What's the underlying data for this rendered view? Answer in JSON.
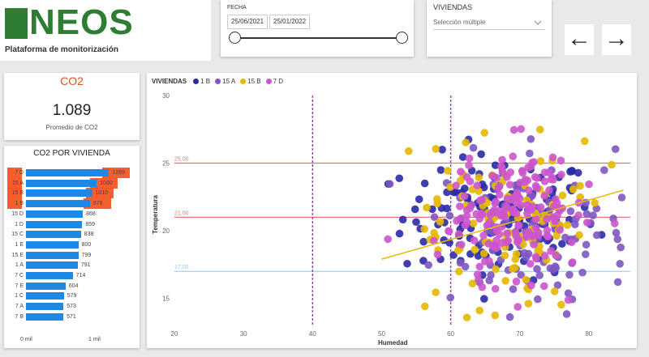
{
  "app": {
    "logo_text": "NEOS",
    "subtitle": "Plataforma de monitorización"
  },
  "date_filter": {
    "label": "FECHA",
    "start": "25/06/2021",
    "end": "25/01/2022"
  },
  "viviendas_filter": {
    "label": "VIVIENDAS",
    "value": "Selección múltiple",
    "chevron_icon": "chevron-down-icon"
  },
  "nav": {
    "back_icon": "←",
    "forward_icon": "→"
  },
  "co2_card": {
    "title": "CO2",
    "value": "1.089",
    "caption": "Promedio de CO2",
    "title_color": "#d9541e"
  },
  "bar_chart": {
    "title": "CO2 POR VIVIENDA",
    "axis_labels": [
      "0 mil",
      "1 mil"
    ],
    "bar_color": "#1e88e5",
    "highlight_color": "#f4511e"
  },
  "chart_data": {
    "type": "scatter",
    "legend_title": "VIVIENDAS",
    "xlabel": "Humedad",
    "ylabel": "Temperatura",
    "xlim": [
      20,
      86
    ],
    "ylim": [
      13,
      30
    ],
    "x_ticks": [
      "20",
      "30",
      "40",
      "50",
      "60",
      "70",
      "80"
    ],
    "y_ticks": [
      "15",
      "20",
      "25",
      "30"
    ],
    "series": [
      {
        "name": "1 B",
        "color": "#2a2aa8"
      },
      {
        "name": "15 A",
        "color": "#7e57c2"
      },
      {
        "name": "15 B",
        "color": "#e6b800"
      },
      {
        "name": "7 D",
        "color": "#cc55cc"
      }
    ],
    "reference_lines": [
      {
        "value": 25,
        "label": "25,00",
        "color": "#e57373"
      },
      {
        "value": 21,
        "label": "21,00",
        "color": "#e57373"
      },
      {
        "value": 17,
        "label": "17,00",
        "color": "#90caf9"
      }
    ],
    "vertical_lines": [
      40,
      60
    ],
    "trend_line": {
      "x": [
        50,
        85
      ],
      "y": [
        17.9,
        23.0
      ],
      "color": "#e6b800"
    },
    "bars": [
      {
        "category": "7 D",
        "value": 1269
      },
      {
        "category": "15 A",
        "value": 1080
      },
      {
        "category": "15 B",
        "value": 1010
      },
      {
        "category": "1 B",
        "value": 976
      },
      {
        "category": "15 D",
        "value": 868
      },
      {
        "category": "1 D",
        "value": 859
      },
      {
        "category": "15 C",
        "value": 838
      },
      {
        "category": "1 E",
        "value": 800
      },
      {
        "category": "15 E",
        "value": 799
      },
      {
        "category": "1 A",
        "value": 791
      },
      {
        "category": "7 C",
        "value": 714
      },
      {
        "category": "7 E",
        "value": 604
      },
      {
        "category": "1 C",
        "value": 579
      },
      {
        "category": "7 A",
        "value": 573
      },
      {
        "category": "7 B",
        "value": 571
      }
    ],
    "clusters": [
      {
        "series": 0,
        "cx": 67,
        "cy": 21,
        "sx": 7,
        "sy": 2.3,
        "n": 130
      },
      {
        "series": 1,
        "cx": 72,
        "cy": 20,
        "sx": 7,
        "sy": 3,
        "n": 110
      },
      {
        "series": 2,
        "cx": 68,
        "cy": 20.5,
        "sx": 5.5,
        "sy": 3,
        "n": 110
      },
      {
        "series": 3,
        "cx": 69,
        "cy": 21.5,
        "sx": 4.5,
        "sy": 2.5,
        "n": 180
      }
    ]
  }
}
